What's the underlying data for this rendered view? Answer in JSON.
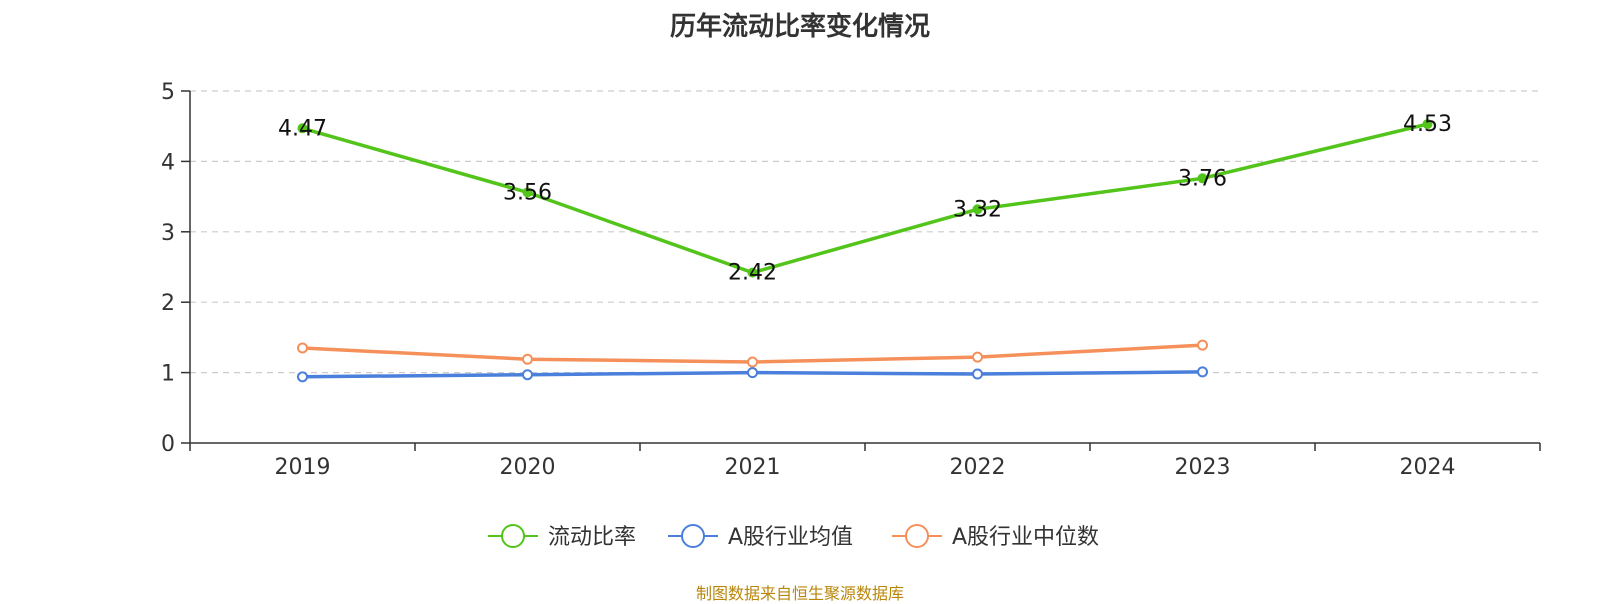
{
  "chart_data": {
    "type": "line",
    "title": "历年流动比率变化情况",
    "categories": [
      "2019",
      "2020",
      "2021",
      "2022",
      "2023",
      "2024"
    ],
    "ylim": [
      0,
      5
    ],
    "yticks": [
      0,
      1,
      2,
      3,
      4,
      5
    ],
    "grid": true,
    "legend_position": "bottom-center",
    "series": [
      {
        "name": "流动比率",
        "color": "#52c41a",
        "values": [
          4.47,
          3.56,
          2.42,
          3.32,
          3.76,
          4.53
        ],
        "labels": [
          "4.47",
          "3.56",
          "2.42",
          "3.32",
          "3.76",
          "4.53"
        ]
      },
      {
        "name": "A股行业均值",
        "color": "#4a7fdb",
        "values": [
          0.94,
          0.97,
          1.0,
          0.98,
          1.01,
          null
        ]
      },
      {
        "name": "A股行业中位数",
        "color": "#f5905a",
        "values": [
          1.35,
          1.19,
          1.15,
          1.22,
          1.39,
          null
        ]
      }
    ]
  },
  "source": "制图数据来自恒生聚源数据库"
}
